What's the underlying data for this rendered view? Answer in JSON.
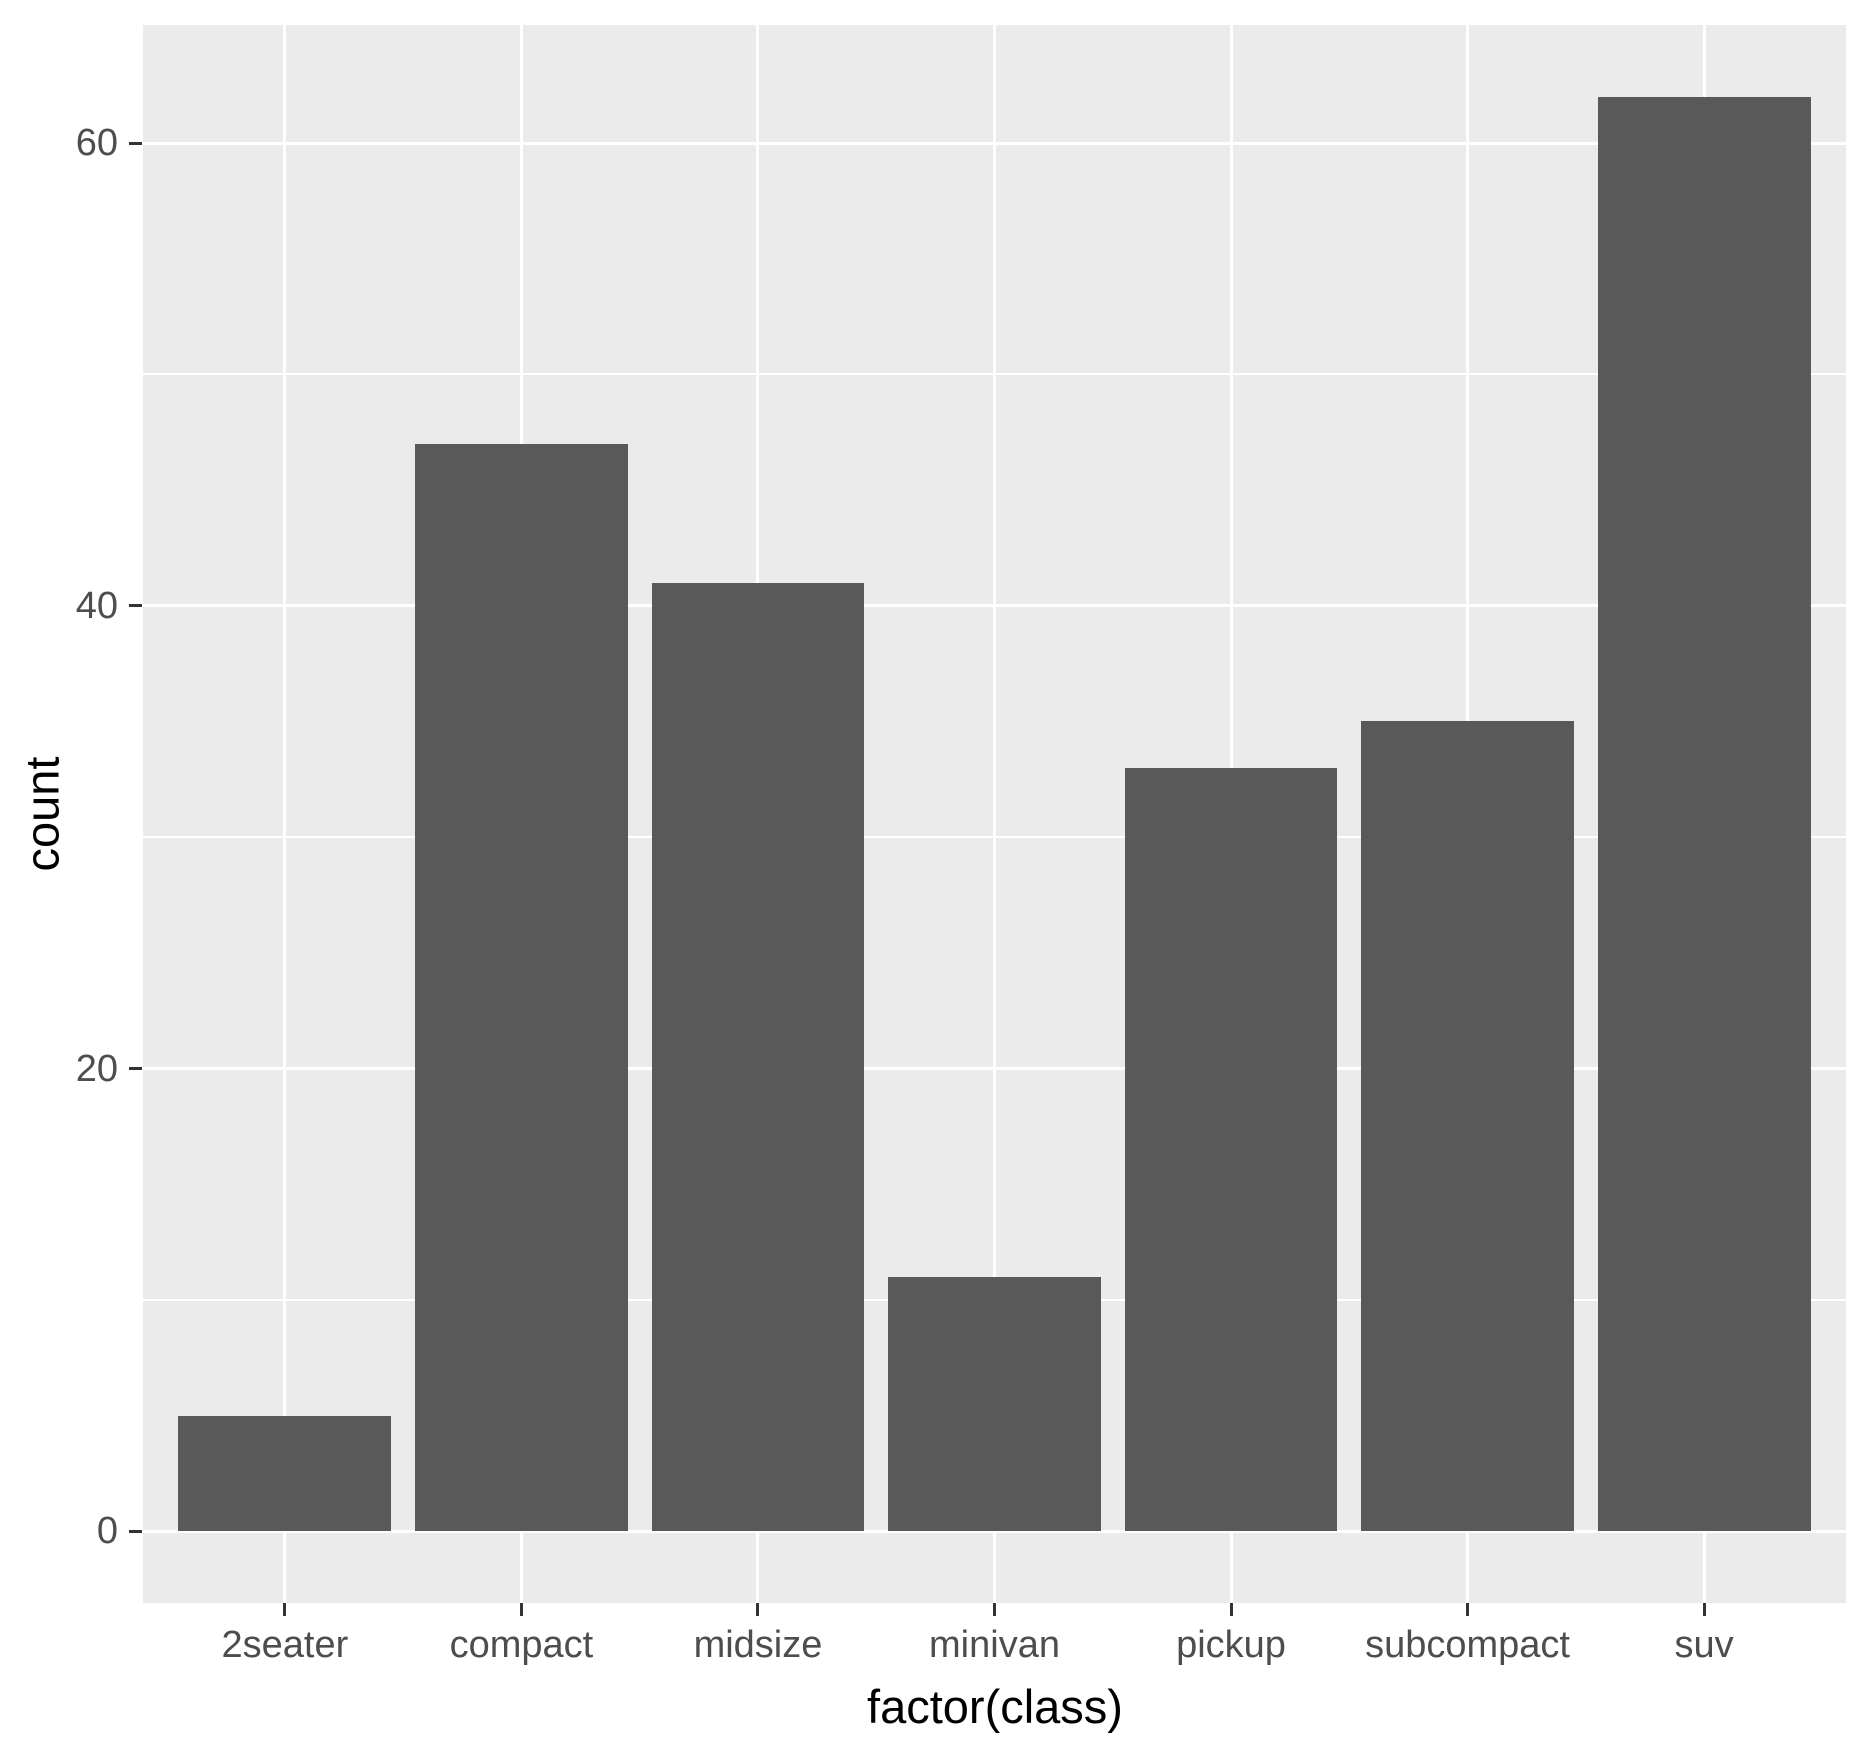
{
  "chart_data": {
    "type": "bar",
    "title": "",
    "xlabel": "factor(class)",
    "ylabel": "count",
    "categories": [
      "2seater",
      "compact",
      "midsize",
      "minivan",
      "pickup",
      "subcompact",
      "suv"
    ],
    "values": [
      5,
      47,
      41,
      11,
      33,
      35,
      62
    ],
    "y_ticks": [
      0,
      20,
      40,
      60
    ],
    "y_minor_ticks": [
      10,
      30,
      50
    ],
    "ylim": [
      -3.1,
      65.1
    ],
    "grid": "on",
    "legend": "none",
    "theme": "ggplot2-grey",
    "colors": {
      "bar_fill": "#595959",
      "panel_background": "#EBEBEB",
      "gridline": "#FFFFFF",
      "axis_text": "#4D4D4D",
      "axis_title": "#000000",
      "tick_mark": "#333333",
      "figure_background": "#FFFFFF"
    }
  }
}
